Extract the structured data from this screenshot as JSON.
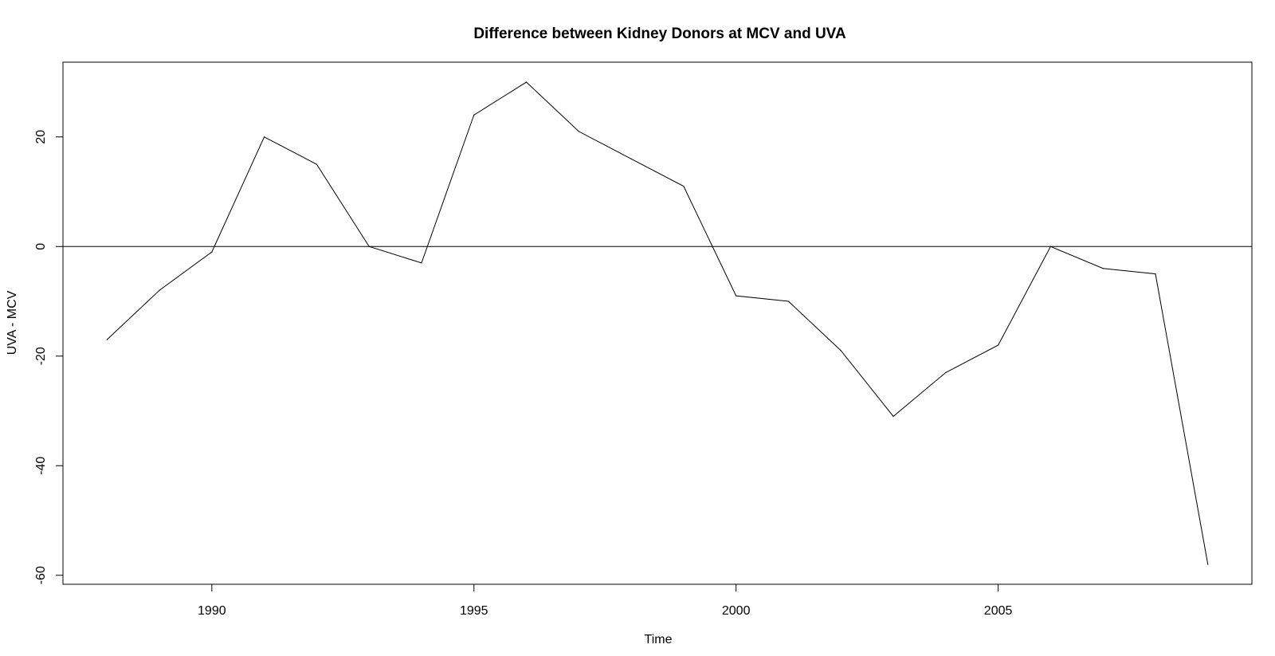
{
  "chart_data": {
    "type": "line",
    "title": "Difference between Kidney Donors at MCV and UVA",
    "xlabel": "Time",
    "ylabel": "UVA - MCV",
    "xlim": [
      1987.16,
      2009.84
    ],
    "ylim": [
      -61.64,
      33.64
    ],
    "x_ticks": [
      1990,
      1995,
      2000,
      2005
    ],
    "y_ticks": [
      -60,
      -40,
      -20,
      0,
      20
    ],
    "grid": false,
    "legend": "none",
    "reference_line": {
      "y": 0
    },
    "series": [
      {
        "color": "#000000",
        "x": [
          1988,
          1989,
          1990,
          1991,
          1992,
          1993,
          1994,
          1995,
          1996,
          1997,
          1998,
          1999,
          2000,
          2001,
          2002,
          2003,
          2004,
          2005,
          2006,
          2007,
          2008,
          2009
        ],
        "y": [
          -17,
          -8,
          -1,
          20,
          15,
          0,
          -3,
          24,
          30,
          21,
          16,
          11,
          -9,
          -10,
          -19,
          -31,
          -23,
          -18,
          0,
          -4,
          -5,
          -58
        ]
      }
    ]
  }
}
